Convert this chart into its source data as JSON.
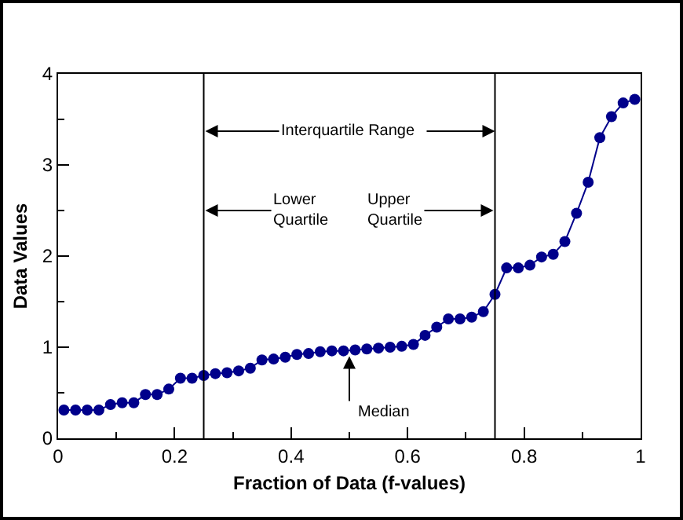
{
  "chart_data": {
    "type": "line",
    "xlabel": "Fraction of Data (f-values)",
    "ylabel": "Data Values",
    "x": [
      0.01,
      0.03,
      0.05,
      0.07,
      0.09,
      0.11,
      0.13,
      0.15,
      0.17,
      0.19,
      0.21,
      0.23,
      0.25,
      0.27,
      0.29,
      0.31,
      0.33,
      0.35,
      0.37,
      0.39,
      0.41,
      0.43,
      0.45,
      0.47,
      0.49,
      0.51,
      0.53,
      0.55,
      0.57,
      0.59,
      0.61,
      0.63,
      0.65,
      0.67,
      0.69,
      0.71,
      0.73,
      0.75,
      0.77,
      0.79,
      0.81,
      0.83,
      0.85,
      0.87,
      0.89,
      0.91,
      0.93,
      0.95,
      0.97,
      0.99
    ],
    "series": [
      {
        "color": "#00008b",
        "values": [
          0.31,
          0.31,
          0.31,
          0.31,
          0.37,
          0.39,
          0.39,
          0.48,
          0.48,
          0.54,
          0.66,
          0.66,
          0.69,
          0.71,
          0.72,
          0.74,
          0.77,
          0.86,
          0.87,
          0.89,
          0.92,
          0.93,
          0.95,
          0.96,
          0.96,
          0.97,
          0.98,
          0.99,
          1.0,
          1.01,
          1.03,
          1.13,
          1.22,
          1.31,
          1.31,
          1.33,
          1.39,
          1.58,
          1.87,
          1.87,
          1.9,
          1.99,
          2.02,
          2.16,
          2.47,
          2.81,
          3.3,
          3.53,
          3.68,
          3.72
        ]
      }
    ],
    "xlim": [
      0,
      1
    ],
    "xticks": [
      0,
      0.2,
      0.4,
      0.6,
      0.8,
      1
    ],
    "ylim": [
      0,
      4
    ],
    "yticks": [
      0,
      1,
      2,
      3,
      4
    ],
    "grid": false,
    "marker": "circle",
    "line_style": "solid",
    "ref_lines": [
      {
        "axis": "x",
        "value": 0.25,
        "color": "#000000"
      },
      {
        "axis": "x",
        "value": 0.75,
        "color": "#000000"
      }
    ],
    "annotations": [
      {
        "text": "Interquartile Range",
        "x": 0.25,
        "y": 3.37
      },
      {
        "text": "Lower\nQuartile",
        "x": 0.25,
        "y": 2.5
      },
      {
        "text": "Upper\nQuartile",
        "x": 0.75,
        "y": 2.5
      },
      {
        "text": "Median",
        "x": 0.5,
        "y": 0.9
      }
    ]
  }
}
